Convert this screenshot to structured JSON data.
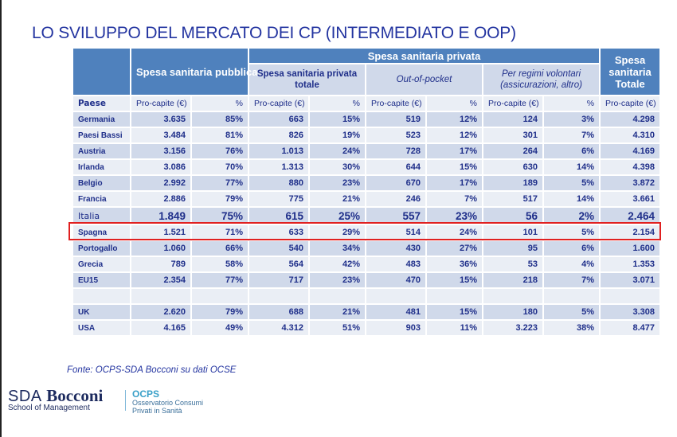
{
  "title": "LO SVILUPPO DEL MERCATO DEI CP (INTERMEDIATO E OOP)",
  "headers": {
    "pubblica": "Spesa sanitaria pubblica",
    "privata": "Spesa sanitaria privata",
    "privata_totale": "Spesa sanitaria privata totale",
    "oop": "Out-of-pocket",
    "volontari": "Per regimi volontari (assicurazioni, altro)",
    "totale": "Spesa sanitaria Totale"
  },
  "subheaders": {
    "paese": "Paese",
    "pro_capite": "Pro-capite (€)",
    "pct": "%"
  },
  "rows": [
    {
      "country": "Germania",
      "pub": "3.635",
      "pub_pct": "85%",
      "priv": "663",
      "priv_pct": "15%",
      "oop": "519",
      "oop_pct": "12%",
      "vol": "124",
      "vol_pct": "3%",
      "tot": "4.298"
    },
    {
      "country": "Paesi Bassi",
      "pub": "3.484",
      "pub_pct": "81%",
      "priv": "826",
      "priv_pct": "19%",
      "oop": "523",
      "oop_pct": "12%",
      "vol": "301",
      "vol_pct": "7%",
      "tot": "4.310"
    },
    {
      "country": "Austria",
      "pub": "3.156",
      "pub_pct": "76%",
      "priv": "1.013",
      "priv_pct": "24%",
      "oop": "728",
      "oop_pct": "17%",
      "vol": "264",
      "vol_pct": "6%",
      "tot": "4.169"
    },
    {
      "country": "Irlanda",
      "pub": "3.086",
      "pub_pct": "70%",
      "priv": "1.313",
      "priv_pct": "30%",
      "oop": "644",
      "oop_pct": "15%",
      "vol": "630",
      "vol_pct": "14%",
      "tot": "4.398"
    },
    {
      "country": "Belgio",
      "pub": "2.992",
      "pub_pct": "77%",
      "priv": "880",
      "priv_pct": "23%",
      "oop": "670",
      "oop_pct": "17%",
      "vol": "189",
      "vol_pct": "5%",
      "tot": "3.872"
    },
    {
      "country": "Francia",
      "pub": "2.886",
      "pub_pct": "79%",
      "priv": "775",
      "priv_pct": "21%",
      "oop": "246",
      "oop_pct": "7%",
      "vol": "517",
      "vol_pct": "14%",
      "tot": "3.661"
    },
    {
      "country": "Italia",
      "pub": "1.849",
      "pub_pct": "75%",
      "priv": "615",
      "priv_pct": "25%",
      "oop": "557",
      "oop_pct": "23%",
      "vol": "56",
      "vol_pct": "2%",
      "tot": "2.464"
    },
    {
      "country": "Spagna",
      "pub": "1.521",
      "pub_pct": "71%",
      "priv": "633",
      "priv_pct": "29%",
      "oop": "514",
      "oop_pct": "24%",
      "vol": "101",
      "vol_pct": "5%",
      "tot": "2.154"
    },
    {
      "country": "Portogallo",
      "pub": "1.060",
      "pub_pct": "66%",
      "priv": "540",
      "priv_pct": "34%",
      "oop": "430",
      "oop_pct": "27%",
      "vol": "95",
      "vol_pct": "6%",
      "tot": "1.600"
    },
    {
      "country": "Grecia",
      "pub": "789",
      "pub_pct": "58%",
      "priv": "564",
      "priv_pct": "42%",
      "oop": "483",
      "oop_pct": "36%",
      "vol": "53",
      "vol_pct": "4%",
      "tot": "1.353"
    },
    {
      "country": "EU15",
      "pub": "2.354",
      "pub_pct": "77%",
      "priv": "717",
      "priv_pct": "23%",
      "oop": "470",
      "oop_pct": "15%",
      "vol": "218",
      "vol_pct": "7%",
      "tot": "3.071"
    },
    {
      "country": "UK",
      "pub": "2.620",
      "pub_pct": "79%",
      "priv": "688",
      "priv_pct": "21%",
      "oop": "481",
      "oop_pct": "15%",
      "vol": "180",
      "vol_pct": "5%",
      "tot": "3.308"
    },
    {
      "country": "USA",
      "pub": "4.165",
      "pub_pct": "49%",
      "priv": "4.312",
      "priv_pct": "51%",
      "oop": "903",
      "oop_pct": "11%",
      "vol": "3.223",
      "vol_pct": "38%",
      "tot": "8.477"
    }
  ],
  "highlight_country": "Italia",
  "source": "Fonte: OCPS-SDA Bocconi su dati OCSE",
  "logo": {
    "sda": "SDA",
    "bocconi": "Bocconi",
    "school": "School of Management",
    "ocps": "OCPS",
    "ocps_line1": "Osservatorio Consumi",
    "ocps_line2": "Privati in Sanità"
  },
  "colors": {
    "header_dark": "#4f81bd",
    "header_light": "#d0d9ea",
    "row_alt": "#eaeef5",
    "text": "#1f2f8a",
    "highlight_border": "#e02020"
  }
}
